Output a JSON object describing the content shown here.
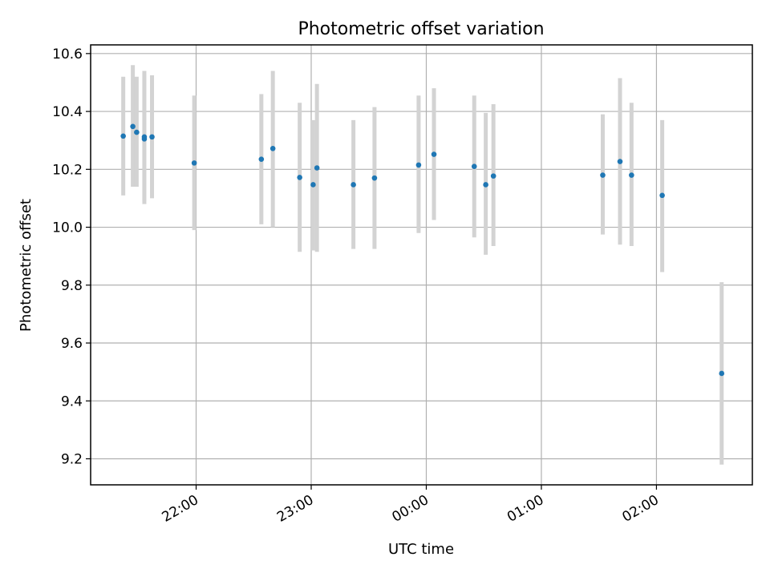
{
  "chart_data": {
    "type": "scatter",
    "title": "Photometric offset variation",
    "xlabel": "UTC time",
    "ylabel": "Photometric offset",
    "x_unit": "UTC clock time (next-day values shown as hours past 24)",
    "xlim": [
      "21:05",
      "02:50"
    ],
    "ylim": [
      9.11,
      10.63
    ],
    "x_ticks": [
      {
        "label": "22:00",
        "value": "22:00"
      },
      {
        "label": "23:00",
        "value": "23:00"
      },
      {
        "label": "00:00",
        "value": "00:00"
      },
      {
        "label": "01:00",
        "value": "01:00"
      },
      {
        "label": "02:00",
        "value": "02:00"
      }
    ],
    "y_ticks": [
      {
        "label": "9.2",
        "value": 9.2
      },
      {
        "label": "9.4",
        "value": 9.4
      },
      {
        "label": "9.6",
        "value": 9.6
      },
      {
        "label": "9.8",
        "value": 9.8
      },
      {
        "label": "10.0",
        "value": 10.0
      },
      {
        "label": "10.2",
        "value": 10.2
      },
      {
        "label": "10.4",
        "value": 10.4
      },
      {
        "label": "10.6",
        "value": 10.6
      }
    ],
    "grid": true,
    "marker_color": "#1f77b4",
    "errorbar_color": "#d3d3d3",
    "series": [
      {
        "points": [
          {
            "x": "21:22",
            "y": 10.315,
            "ylo": 10.11,
            "yhi": 10.52
          },
          {
            "x": "21:27",
            "y": 10.348,
            "ylo": 10.14,
            "yhi": 10.56
          },
          {
            "x": "21:29",
            "y": 10.328,
            "ylo": 10.14,
            "yhi": 10.52
          },
          {
            "x": "21:33",
            "y": 10.305,
            "ylo": 10.08,
            "yhi": 10.54
          },
          {
            "x": "21:33",
            "y": 10.312,
            "ylo": 10.09,
            "yhi": 10.53
          },
          {
            "x": "21:37",
            "y": 10.312,
            "ylo": 10.1,
            "yhi": 10.525
          },
          {
            "x": "21:59",
            "y": 10.222,
            "ylo": 9.99,
            "yhi": 10.455
          },
          {
            "x": "22:34",
            "y": 10.235,
            "ylo": 10.01,
            "yhi": 10.46
          },
          {
            "x": "22:40",
            "y": 10.272,
            "ylo": 10.0,
            "yhi": 10.54
          },
          {
            "x": "22:54",
            "y": 10.172,
            "ylo": 9.915,
            "yhi": 10.43
          },
          {
            "x": "23:01",
            "y": 10.147,
            "ylo": 9.92,
            "yhi": 10.37
          },
          {
            "x": "23:03",
            "y": 10.205,
            "ylo": 9.915,
            "yhi": 10.495
          },
          {
            "x": "23:22",
            "y": 10.147,
            "ylo": 9.925,
            "yhi": 10.37
          },
          {
            "x": "23:33",
            "y": 10.17,
            "ylo": 9.925,
            "yhi": 10.415
          },
          {
            "x": "23:56",
            "y": 10.215,
            "ylo": 9.98,
            "yhi": 10.455
          },
          {
            "x": "00:04",
            "y": 10.252,
            "ylo": 10.025,
            "yhi": 10.48
          },
          {
            "x": "00:25",
            "y": 10.21,
            "ylo": 9.965,
            "yhi": 10.455
          },
          {
            "x": "00:31",
            "y": 10.147,
            "ylo": 9.905,
            "yhi": 10.395
          },
          {
            "x": "00:35",
            "y": 10.177,
            "ylo": 9.935,
            "yhi": 10.425
          },
          {
            "x": "01:32",
            "y": 10.18,
            "ylo": 9.975,
            "yhi": 10.39
          },
          {
            "x": "01:41",
            "y": 10.227,
            "ylo": 9.94,
            "yhi": 10.515
          },
          {
            "x": "01:47",
            "y": 10.18,
            "ylo": 9.935,
            "yhi": 10.43
          },
          {
            "x": "02:03",
            "y": 10.11,
            "ylo": 9.845,
            "yhi": 10.37
          },
          {
            "x": "02:34",
            "y": 9.495,
            "ylo": 9.18,
            "yhi": 9.81
          }
        ]
      }
    ]
  }
}
